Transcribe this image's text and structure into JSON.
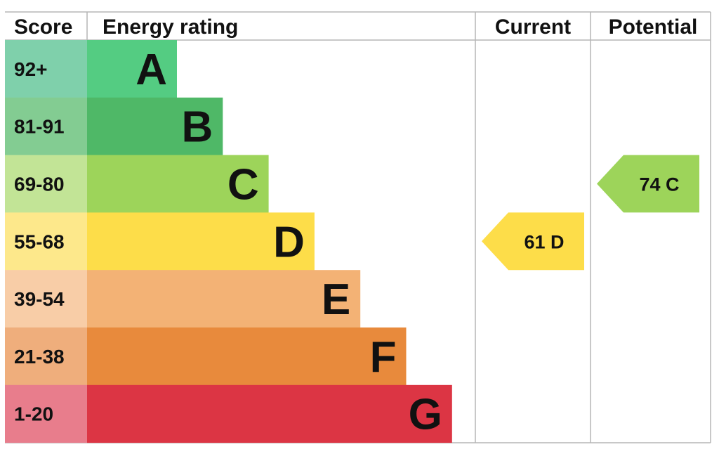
{
  "headers": {
    "score": "Score",
    "rating": "Energy rating",
    "current": "Current",
    "potential": "Potential"
  },
  "chart_data": {
    "type": "bar",
    "bands": [
      {
        "letter": "A",
        "range": "92+",
        "color": "#54cc82",
        "score_color": "#7fd0ab"
      },
      {
        "letter": "B",
        "range": "81-91",
        "color": "#4fb867",
        "score_color": "#83cc92"
      },
      {
        "letter": "C",
        "range": "69-80",
        "color": "#9dd45a",
        "score_color": "#c2e496"
      },
      {
        "letter": "D",
        "range": "55-68",
        "color": "#fddd49",
        "score_color": "#fde88b"
      },
      {
        "letter": "E",
        "range": "39-54",
        "color": "#f3b275",
        "score_color": "#f8cda7"
      },
      {
        "letter": "F",
        "range": "21-38",
        "color": "#e88a3c",
        "score_color": "#efae7c"
      },
      {
        "letter": "G",
        "range": "1-20",
        "color": "#dc3544",
        "score_color": "#e87d8c"
      }
    ],
    "current": {
      "score": 61,
      "band": "D",
      "label": "61  D",
      "color": "#fddd49"
    },
    "potential": {
      "score": 74,
      "band": "C",
      "label": "74  C",
      "color": "#9dd45a"
    }
  }
}
